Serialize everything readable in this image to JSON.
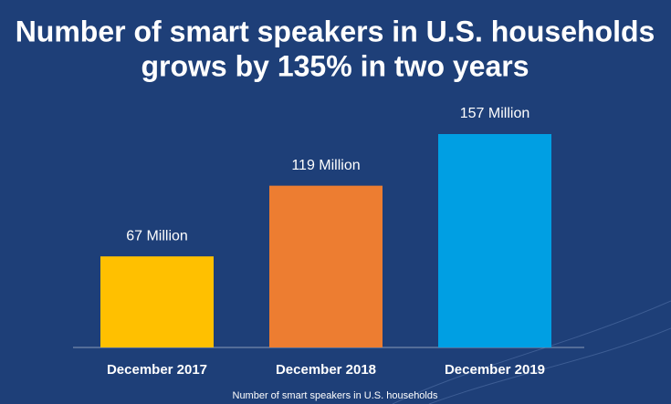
{
  "chart_data": {
    "type": "bar",
    "title": [
      "Number of smart speakers in U.S. households",
      "grows by 135% in two years"
    ],
    "categories": [
      "December 2017",
      "December 2018",
      "December 2019"
    ],
    "values": [
      67,
      119,
      157
    ],
    "value_labels": [
      "67 Million",
      "119 Million",
      "157 Million"
    ],
    "colors": [
      "#ffc000",
      "#ed7d31",
      "#009fe3"
    ],
    "caption": "Number of smart speakers in U.S. households"
  }
}
